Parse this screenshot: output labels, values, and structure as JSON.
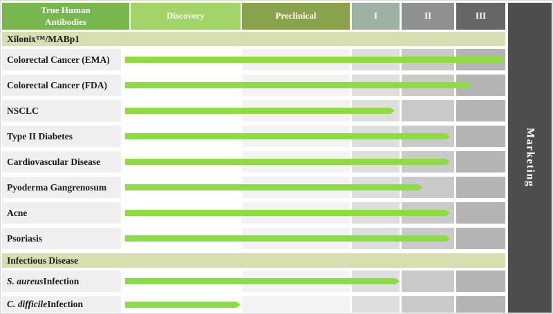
{
  "colors": {
    "bar": "#8ddc40",
    "header_true_human": "#77b74e",
    "header_discovery": "#a3d469",
    "header_preclinical": "#8aa24b",
    "header_phase1": "#9eb2a3",
    "header_phase2": "#8f9090",
    "header_phase3": "#666666",
    "marketing_bg": "#4d4d4d",
    "section_band": "#d6deb2",
    "label_cell": "#efefef",
    "body_preclinical": "#f3f3f3",
    "body_phase1": "#dedede",
    "body_phase2": "#cacaca",
    "body_phase3": "#b4b4b4"
  },
  "header": {
    "columns": [
      {
        "id": "true_human",
        "label": "True Human Antibodies"
      },
      {
        "id": "discovery",
        "label": "Discovery"
      },
      {
        "id": "preclinical",
        "label": "Preclinical"
      },
      {
        "id": "phase1",
        "label": "I"
      },
      {
        "id": "phase2",
        "label": "II"
      },
      {
        "id": "phase3",
        "label": "III"
      }
    ]
  },
  "marketing": {
    "label": "Marketing"
  },
  "chart_data": {
    "type": "bar",
    "orientation": "horizontal",
    "stage_axis": [
      "Discovery",
      "Preclinical",
      "I",
      "II",
      "III",
      "Marketing"
    ],
    "stage_scale": "stage_reached units: 1 = end of Discovery, 2 = end of Preclinical, 3 = end of Phase I, 4 = end of Phase II, 5 = end of Phase III",
    "groups": [
      {
        "section": "Xilonix™/MABp1",
        "programs": [
          {
            "label_parts": [
              {
                "text": "Colorectal Cancer (EMA)",
                "italic": false
              }
            ],
            "stage_reached": 5.0
          },
          {
            "label_parts": [
              {
                "text": "Colorectal Cancer (FDA)",
                "italic": false
              }
            ],
            "stage_reached": 4.35
          },
          {
            "label_parts": [
              {
                "text": "NSCLC",
                "italic": false
              }
            ],
            "stage_reached": 2.9
          },
          {
            "label_parts": [
              {
                "text": "Type II Diabetes",
                "italic": false
              }
            ],
            "stage_reached": 3.92
          },
          {
            "label_parts": [
              {
                "text": "Cardiovascular Disease",
                "italic": false
              }
            ],
            "stage_reached": 3.92
          },
          {
            "label_parts": [
              {
                "text": "Pyoderma Gangrenosum",
                "italic": false
              }
            ],
            "stage_reached": 3.42
          },
          {
            "label_parts": [
              {
                "text": "Acne",
                "italic": false
              }
            ],
            "stage_reached": 3.92
          },
          {
            "label_parts": [
              {
                "text": "Psoriasis",
                "italic": false
              }
            ],
            "stage_reached": 3.92
          }
        ]
      },
      {
        "section": "Infectious Disease",
        "programs": [
          {
            "label_parts": [
              {
                "text": "S. aureus",
                "italic": true
              },
              {
                "text": " Infection",
                "italic": false
              }
            ],
            "stage_reached": 3.0
          },
          {
            "label_parts": [
              {
                "text": "C. difficile",
                "italic": true
              },
              {
                "text": " Infection",
                "italic": false
              }
            ],
            "stage_reached": 1.0
          }
        ]
      }
    ]
  }
}
